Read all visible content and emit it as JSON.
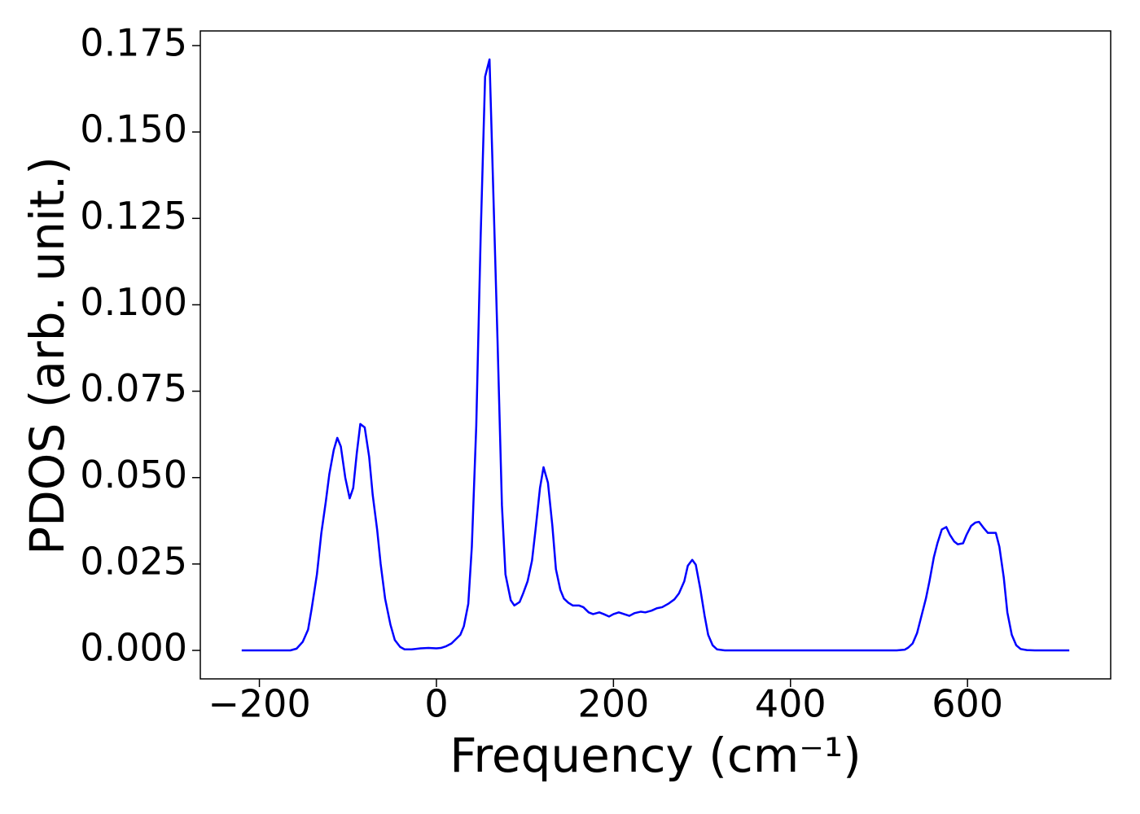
{
  "chart_data": {
    "type": "line",
    "xlabel": "Frequency (cm⁻¹)",
    "ylabel": "PDOS (arb. unit.)",
    "x": [
      -220,
      -200,
      -180,
      -165,
      -158,
      -151,
      -145,
      -141,
      -135,
      -130,
      -125,
      -121,
      -116,
      -112,
      -108,
      -103,
      -98,
      -94,
      -90,
      -86,
      -81,
      -76,
      -72,
      -67,
      -63,
      -58,
      -52,
      -47,
      -41,
      -36,
      -28,
      -18,
      -9,
      0,
      5,
      11,
      17,
      21,
      27,
      31,
      36,
      40,
      45,
      50,
      55,
      60,
      64,
      69,
      74,
      78,
      84,
      88,
      94,
      98,
      103,
      108,
      112,
      117,
      121,
      126,
      131,
      135,
      140,
      144,
      149,
      154,
      161,
      166,
      172,
      177,
      184,
      189,
      195,
      200,
      206,
      212,
      218,
      224,
      231,
      236,
      243,
      249,
      255,
      262,
      269,
      274,
      280,
      284,
      289,
      293,
      298,
      303,
      307,
      312,
      317,
      326,
      400,
      500,
      520,
      529,
      533,
      538,
      543,
      548,
      553,
      557,
      562,
      566,
      571,
      576,
      580,
      585,
      589,
      595,
      599,
      604,
      609,
      613,
      618,
      623,
      628,
      632,
      636,
      641,
      645,
      650,
      655,
      660,
      667,
      676,
      715
    ],
    "series": [
      {
        "color": "#0000ff",
        "values": [
          0,
          0,
          0,
          0,
          0.0005,
          0.0025,
          0.006,
          0.012,
          0.022,
          0.034,
          0.043,
          0.051,
          0.058,
          0.0615,
          0.059,
          0.05,
          0.044,
          0.047,
          0.057,
          0.0655,
          0.0645,
          0.056,
          0.045,
          0.035,
          0.025,
          0.015,
          0.0075,
          0.003,
          0.001,
          0.0003,
          0.0003,
          0.0006,
          0.0007,
          0.0006,
          0.0007,
          0.0012,
          0.002,
          0.003,
          0.0045,
          0.007,
          0.0135,
          0.03,
          0.065,
          0.12,
          0.166,
          0.171,
          0.135,
          0.09,
          0.042,
          0.022,
          0.0145,
          0.013,
          0.014,
          0.0165,
          0.02,
          0.026,
          0.035,
          0.047,
          0.053,
          0.0485,
          0.036,
          0.0235,
          0.0175,
          0.015,
          0.0138,
          0.013,
          0.013,
          0.0125,
          0.011,
          0.0105,
          0.011,
          0.0105,
          0.0098,
          0.0105,
          0.011,
          0.0105,
          0.01,
          0.0108,
          0.0112,
          0.011,
          0.0115,
          0.0122,
          0.0125,
          0.0135,
          0.0148,
          0.0165,
          0.02,
          0.0245,
          0.0262,
          0.0248,
          0.018,
          0.01,
          0.0045,
          0.0015,
          0.0003,
          0,
          0,
          0,
          0,
          0.0002,
          0.0008,
          0.002,
          0.005,
          0.01,
          0.015,
          0.02,
          0.027,
          0.031,
          0.035,
          0.0357,
          0.0335,
          0.0315,
          0.0307,
          0.031,
          0.0335,
          0.036,
          0.037,
          0.0372,
          0.0355,
          0.034,
          0.034,
          0.034,
          0.03,
          0.021,
          0.011,
          0.0045,
          0.0015,
          0.0004,
          0.0001,
          0,
          0
        ]
      }
    ],
    "xlim": [
      -266.75,
      761.75
    ],
    "ylim": [
      -0.00824,
      0.17924
    ],
    "xticks": [
      {
        "value": -200,
        "label": "−200"
      },
      0,
      200,
      400,
      600
    ],
    "yticks": [
      {
        "value": 0,
        "label": "0.000"
      },
      {
        "value": 0.025,
        "label": "0.025"
      },
      {
        "value": 0.05,
        "label": "0.050"
      },
      {
        "value": 0.075,
        "label": "0.075"
      },
      {
        "value": 0.1,
        "label": "0.100"
      },
      {
        "value": 0.125,
        "label": "0.125"
      },
      {
        "value": 0.15,
        "label": "0.150"
      },
      {
        "value": 0.175,
        "label": "0.175"
      }
    ],
    "grid": false
  }
}
